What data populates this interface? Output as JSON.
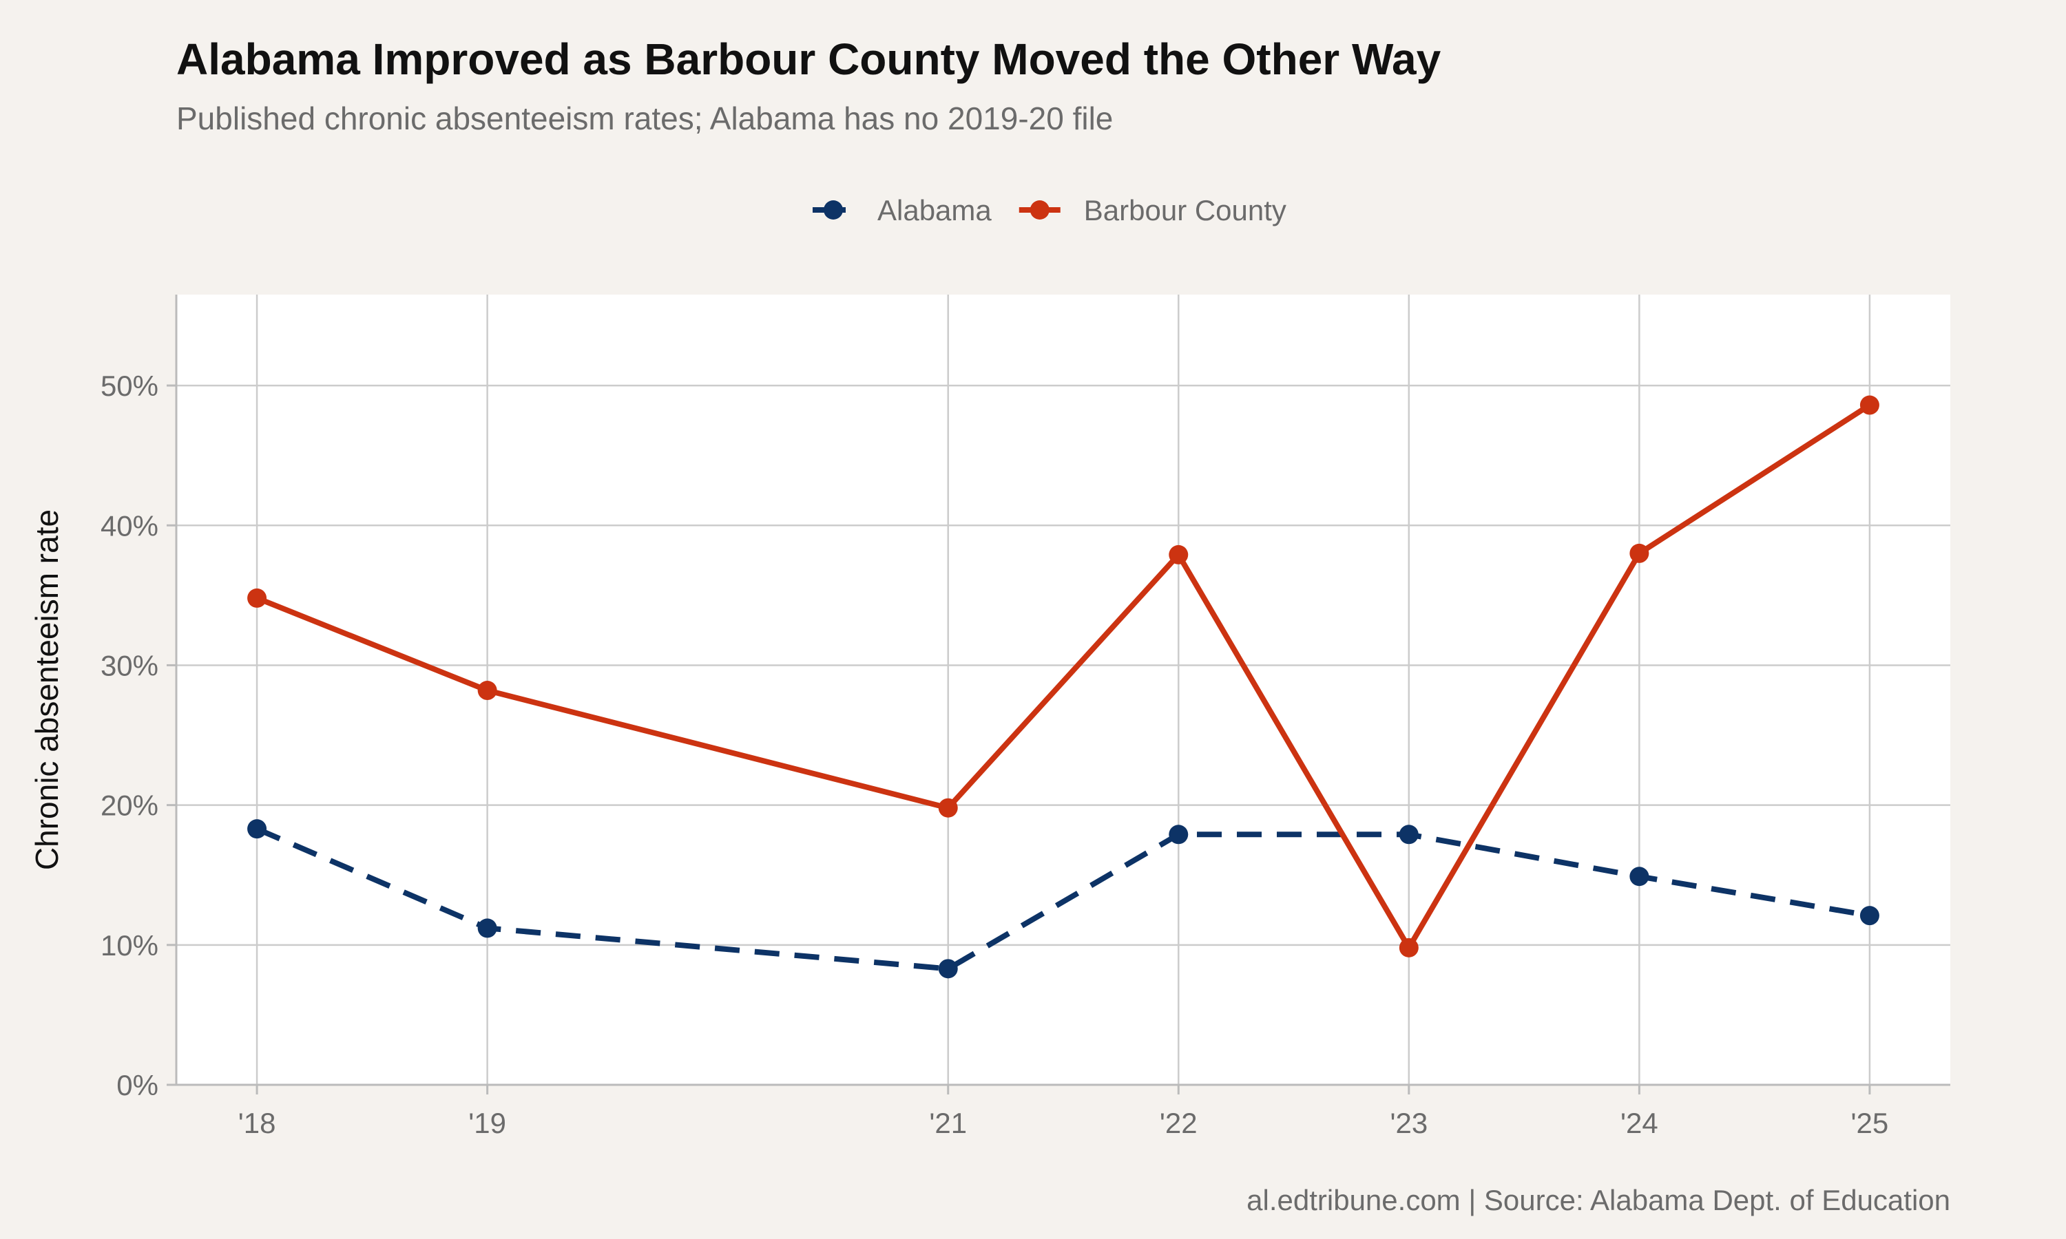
{
  "colors": {
    "background": "#f5f2ee",
    "panel": "#ffffff",
    "grid": "#cccccc",
    "axis_text": "#6b6b6b",
    "title": "#111111",
    "alabama": "#0d3366",
    "barbour": "#cc3311"
  },
  "chart_data": {
    "type": "line",
    "title": "Alabama Improved as Barbour County Moved the Other Way",
    "subtitle": "Published chronic absenteeism rates; Alabama has no 2019-20 file",
    "xlabel": "",
    "ylabel": "Chronic absenteeism rate",
    "caption": "al.edtribune.com | Source: Alabama Dept. of Education",
    "x": [
      2018,
      2019,
      2021,
      2022,
      2023,
      2024,
      2025
    ],
    "x_tick_labels": [
      "'18",
      "'19",
      "'21",
      "'22",
      "'23",
      "'24",
      "'25"
    ],
    "xlim": [
      2017.65,
      2025.35
    ],
    "ylim": [
      0,
      56.5
    ],
    "y_ticks": [
      0,
      10,
      20,
      30,
      40,
      50
    ],
    "y_tick_labels": [
      "0%",
      "10%",
      "20%",
      "30%",
      "40%",
      "50%"
    ],
    "grid": true,
    "legend_position": "top",
    "series": [
      {
        "name": "Alabama",
        "style": "dashed",
        "color": "#0d3366",
        "values": [
          18.3,
          11.2,
          8.3,
          17.9,
          17.9,
          14.9,
          12.1
        ]
      },
      {
        "name": "Barbour County",
        "style": "solid",
        "color": "#cc3311",
        "values": [
          34.8,
          28.2,
          19.8,
          37.9,
          9.8,
          38.0,
          48.6
        ]
      }
    ]
  }
}
